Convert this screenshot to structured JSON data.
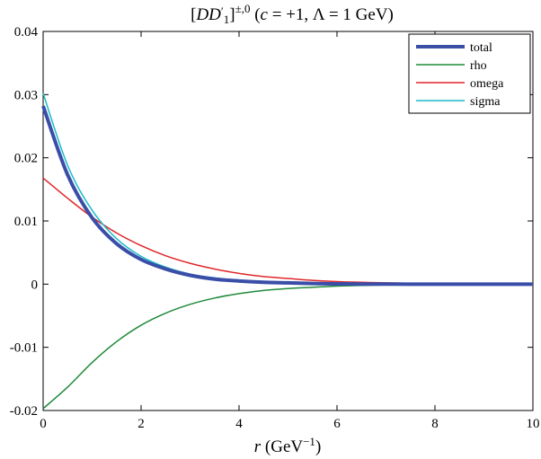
{
  "chart_data": {
    "type": "line",
    "title": "[DD′₁]^{±,0} (c = +1, Λ = 1 GeV)",
    "xlabel": "r (GeV⁻¹)",
    "ylabel": "",
    "xlim": [
      0,
      10
    ],
    "ylim": [
      -0.02,
      0.04
    ],
    "xticks": [
      0,
      2,
      4,
      6,
      8,
      10
    ],
    "yticks": [
      -0.02,
      -0.01,
      0,
      0.01,
      0.02,
      0.03,
      0.04
    ],
    "xtick_labels": [
      "0",
      "2",
      "4",
      "6",
      "8",
      "10"
    ],
    "ytick_labels": [
      "-0.02",
      "-0.01",
      "0",
      "0.01",
      "0.02",
      "0.03",
      "0.04"
    ],
    "grid": false,
    "legend_position": "top-right",
    "x": [
      0,
      0.5,
      1,
      1.5,
      2,
      2.5,
      3,
      3.5,
      4,
      4.5,
      5,
      5.5,
      6,
      6.5,
      7,
      7.5,
      8,
      8.5,
      9,
      9.5,
      10
    ],
    "series": [
      {
        "name": "total",
        "color": "#3a4ea8",
        "width": 4,
        "values": [
          0.0282,
          0.0173,
          0.0105,
          0.0064,
          0.0039,
          0.0024,
          0.0014,
          0.0008,
          0.0005,
          0.0003,
          0.0002,
          0.0001,
          5e-05,
          2e-05,
          1e-05,
          0.0,
          0.0,
          0.0,
          0.0,
          0.0,
          0.0
        ]
      },
      {
        "name": "rho",
        "color": "#1f8a3a",
        "width": 1.5,
        "values": [
          -0.0197,
          -0.0163,
          -0.0124,
          -0.0091,
          -0.0065,
          -0.0046,
          -0.0032,
          -0.0022,
          -0.0015,
          -0.001,
          -0.0007,
          -0.0005,
          -0.0003,
          -0.0002,
          -0.00013,
          -8e-05,
          -5e-05,
          -3e-05,
          -2e-05,
          -1e-05,
          0.0
        ]
      },
      {
        "name": "omega",
        "color": "#e0262a",
        "width": 1.5,
        "values": [
          0.0168,
          0.0136,
          0.0106,
          0.0081,
          0.0061,
          0.0045,
          0.0033,
          0.0024,
          0.0017,
          0.0012,
          0.0009,
          0.0006,
          0.0004,
          0.0003,
          0.0002,
          0.00013,
          8e-05,
          5e-05,
          3e-05,
          2e-05,
          1e-05
        ]
      },
      {
        "name": "sigma",
        "color": "#19bcc8",
        "width": 1.5,
        "values": [
          0.0302,
          0.0188,
          0.0117,
          0.0072,
          0.0044,
          0.0027,
          0.0016,
          0.001,
          0.0006,
          0.0004,
          0.0002,
          0.00013,
          8e-05,
          4e-05,
          2e-05,
          1e-05,
          0.0,
          0.0,
          0.0,
          0.0,
          0.0
        ]
      }
    ]
  }
}
